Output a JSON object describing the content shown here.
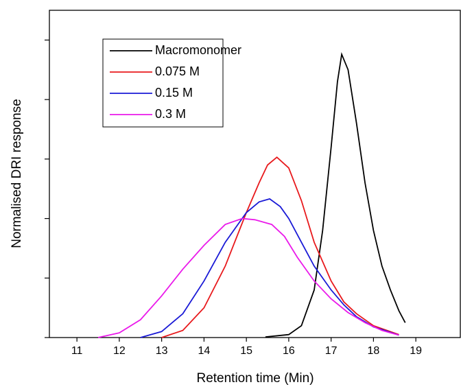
{
  "chart_data": {
    "type": "line",
    "x_label": "Retention time (Min)",
    "y_label": "Normalised DRI response",
    "xlim": [
      10.35,
      20.05
    ],
    "ylim": [
      0,
      5.5
    ],
    "xticks": [
      11,
      12,
      13,
      14,
      15,
      16,
      17,
      18,
      19
    ],
    "yticks": [
      0,
      1,
      2,
      3,
      4,
      5
    ],
    "legend": "upper left",
    "series": [
      {
        "name": "Macromonomer",
        "color": "#000000",
        "x": [
          15.45,
          16.0,
          16.3,
          16.6,
          16.8,
          17.0,
          17.15,
          17.25,
          17.4,
          17.6,
          17.8,
          18.0,
          18.2,
          18.4,
          18.6,
          18.75
        ],
        "values": [
          0.01,
          0.05,
          0.2,
          0.8,
          1.8,
          3.2,
          4.3,
          4.76,
          4.5,
          3.6,
          2.6,
          1.8,
          1.2,
          0.8,
          0.45,
          0.25
        ]
      },
      {
        "name": "0.075 M",
        "color": "#e8191c",
        "x": [
          13.0,
          13.5,
          14.0,
          14.5,
          15.0,
          15.3,
          15.5,
          15.72,
          16.0,
          16.3,
          16.6,
          17.0,
          17.3,
          17.6,
          18.0,
          18.6
        ],
        "values": [
          0.0,
          0.12,
          0.5,
          1.2,
          2.1,
          2.6,
          2.9,
          3.03,
          2.85,
          2.3,
          1.6,
          0.95,
          0.6,
          0.4,
          0.2,
          0.05
        ]
      },
      {
        "name": "0.15 M",
        "color": "#1a1ad6",
        "x": [
          12.5,
          13.0,
          13.5,
          14.0,
          14.5,
          15.0,
          15.3,
          15.55,
          15.8,
          16.0,
          16.3,
          16.6,
          17.0,
          17.3,
          17.6,
          18.0,
          18.6
        ],
        "values": [
          0.0,
          0.1,
          0.4,
          0.95,
          1.6,
          2.1,
          2.28,
          2.33,
          2.2,
          2.0,
          1.6,
          1.2,
          0.8,
          0.55,
          0.35,
          0.18,
          0.04
        ]
      },
      {
        "name": "0.3 M",
        "color": "#ea1aea",
        "x": [
          11.5,
          12.0,
          12.5,
          13.0,
          13.5,
          14.0,
          14.5,
          14.9,
          15.2,
          15.6,
          15.9,
          16.2,
          16.6,
          17.0,
          17.4,
          17.8,
          18.2,
          18.6
        ],
        "values": [
          0.0,
          0.08,
          0.3,
          0.7,
          1.15,
          1.55,
          1.9,
          2.0,
          1.98,
          1.9,
          1.7,
          1.35,
          0.95,
          0.65,
          0.42,
          0.25,
          0.12,
          0.04
        ]
      }
    ]
  }
}
